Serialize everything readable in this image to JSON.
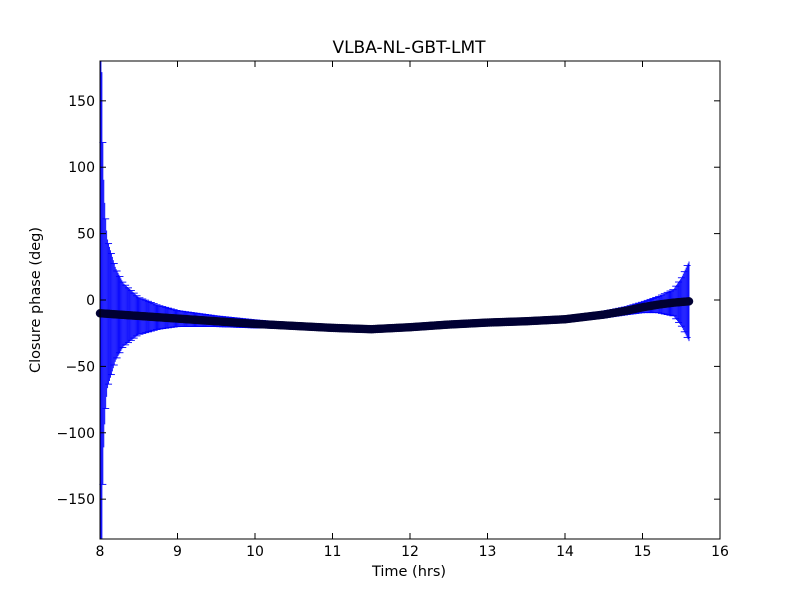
{
  "chart_data": {
    "type": "scatter",
    "title": "VLBA-NL-GBT-LMT",
    "xlabel": "Time (hrs)",
    "ylabel": "Closure phase (deg)",
    "xlim": [
      8,
      16
    ],
    "ylim": [
      -180,
      180
    ],
    "xticks": [
      8,
      9,
      10,
      11,
      12,
      13,
      14,
      15,
      16
    ],
    "xtick_labels": [
      "8",
      "9",
      "10",
      "11",
      "12",
      "13",
      "14",
      "15",
      "16"
    ],
    "yticks": [
      -150,
      -100,
      -50,
      0,
      50,
      100,
      150
    ],
    "ytick_labels": [
      "−150",
      "−100",
      "−50",
      "0",
      "50",
      "100",
      "150"
    ],
    "grid": false,
    "series": [
      {
        "style": "markers with error bars",
        "marker_color": "#000033",
        "errorbar_color": "#0000ff",
        "x": [
          8.0,
          8.05,
          8.1,
          8.2,
          8.3,
          8.5,
          8.75,
          9.0,
          9.5,
          10.0,
          10.5,
          11.0,
          11.5,
          12.0,
          12.5,
          13.0,
          13.5,
          14.0,
          14.5,
          14.8,
          15.0,
          15.2,
          15.4,
          15.5,
          15.6
        ],
        "y": [
          -10,
          -10.2,
          -10.4,
          -10.8,
          -11.2,
          -12,
          -13,
          -14,
          -16,
          -18,
          -19.5,
          -21,
          -22,
          -20.5,
          -18.5,
          -17,
          -16,
          -14.5,
          -11,
          -8,
          -5.5,
          -3.5,
          -2,
          -1.5,
          -1
        ],
        "yerr": [
          180,
          80,
          55,
          35,
          24,
          14,
          9,
          6,
          4,
          3,
          2,
          1.5,
          1.2,
          1.2,
          1.5,
          2,
          2,
          2,
          2.5,
          3,
          4,
          6,
          10,
          18,
          30
        ]
      }
    ]
  }
}
